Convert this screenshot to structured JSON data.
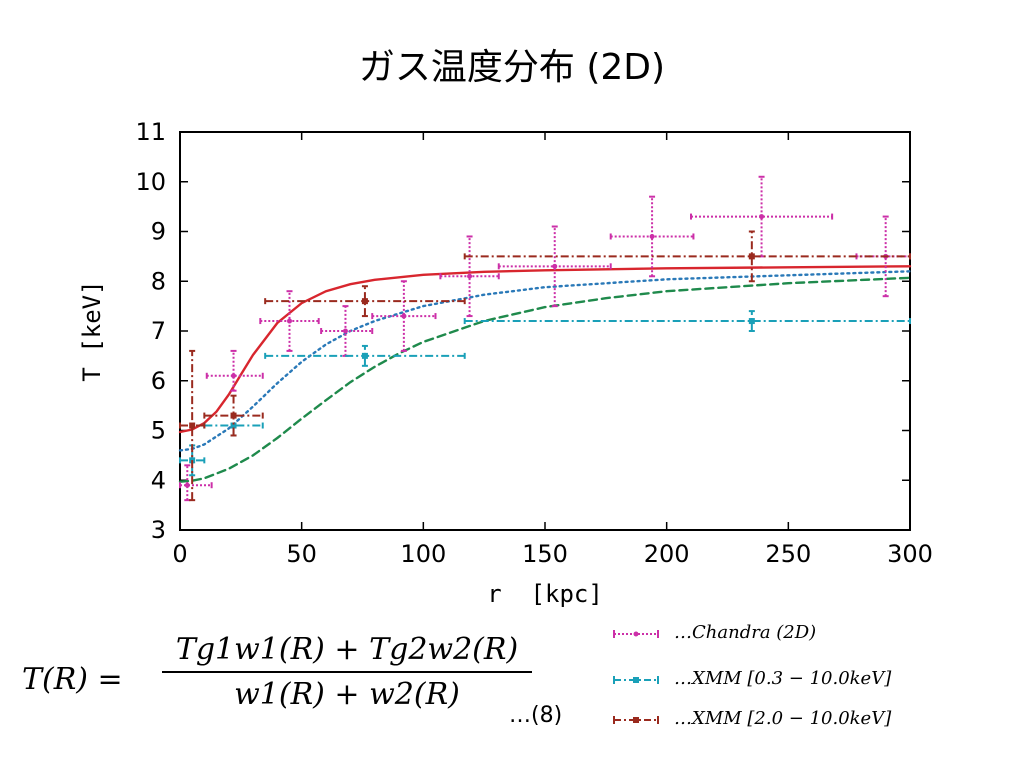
{
  "title": "ガス温度分布 (2D)",
  "formula": {
    "lhs": "T(R) =",
    "numerator": "Tg1w1(R) + Tg2w2(R)",
    "denominator": "w1(R) + w2(R)",
    "equation_number": "…(8)"
  },
  "legend": [
    {
      "label": "…Chandra (2D)",
      "color": "#cc2fa8"
    },
    {
      "label": "…XMM [0.3 − 10.0keV]",
      "color": "#1aa0b8"
    },
    {
      "label": "…XMM [2.0 − 10.0keV]",
      "color": "#9a2a1e"
    }
  ],
  "chart_data": {
    "type": "scatter",
    "xlabel": "r  [kpc]",
    "ylabel": "T [keV]",
    "xlim": [
      0,
      300
    ],
    "ylim": [
      3,
      11
    ],
    "xticks": [
      0,
      50,
      100,
      150,
      200,
      250,
      300
    ],
    "yticks": [
      3,
      4,
      5,
      6,
      7,
      8,
      9,
      10,
      11
    ],
    "grid": false,
    "series": [
      {
        "name": "Chandra (2D)",
        "color": "#cc2fa8",
        "style": "errorbar-dotted",
        "points": [
          {
            "x": 3,
            "y": 3.9,
            "xerr": [
              3,
              10
            ],
            "yerr": [
              0.3,
              0.4
            ]
          },
          {
            "x": 22,
            "y": 6.1,
            "xerr": [
              11,
              12
            ],
            "yerr": [
              0.3,
              0.5
            ]
          },
          {
            "x": 45,
            "y": 7.2,
            "xerr": [
              12,
              12
            ],
            "yerr": [
              0.6,
              0.6
            ]
          },
          {
            "x": 68,
            "y": 7.0,
            "xerr": [
              10,
              11
            ],
            "yerr": [
              0.5,
              0.5
            ]
          },
          {
            "x": 92,
            "y": 7.3,
            "xerr": [
              13,
              13
            ],
            "yerr": [
              0.7,
              0.7
            ]
          },
          {
            "x": 119,
            "y": 8.1,
            "xerr": [
              12,
              12
            ],
            "yerr": [
              0.8,
              0.8
            ]
          },
          {
            "x": 154,
            "y": 8.3,
            "xerr": [
              23,
              23
            ],
            "yerr": [
              0.8,
              0.8
            ]
          },
          {
            "x": 194,
            "y": 8.9,
            "xerr": [
              17,
              17
            ],
            "yerr": [
              0.8,
              0.8
            ]
          },
          {
            "x": 239,
            "y": 9.3,
            "xerr": [
              29,
              29
            ],
            "yerr": [
              0.8,
              0.8
            ]
          },
          {
            "x": 290,
            "y": 8.5,
            "xerr": [
              12,
              10
            ],
            "yerr": [
              0.8,
              0.8
            ]
          }
        ]
      },
      {
        "name": "XMM [0.3 - 10.0keV]",
        "color": "#1aa0b8",
        "style": "errorbar-dashdot",
        "points": [
          {
            "x": 5,
            "y": 4.4,
            "xerr": [
              5,
              5
            ],
            "yerr": [
              0.3,
              0.3
            ]
          },
          {
            "x": 22,
            "y": 5.1,
            "xerr": [
              12,
              12
            ],
            "yerr": [
              0.2,
              0.2
            ]
          },
          {
            "x": 76,
            "y": 6.5,
            "xerr": [
              41,
              41
            ],
            "yerr": [
              0.2,
              0.2
            ]
          },
          {
            "x": 235,
            "y": 7.2,
            "xerr": [
              118,
              65
            ],
            "yerr": [
              0.2,
              0.2
            ]
          }
        ]
      },
      {
        "name": "XMM [2.0 - 10.0keV]",
        "color": "#9a2a1e",
        "style": "errorbar-dashdot",
        "points": [
          {
            "x": 5,
            "y": 5.1,
            "xerr": [
              5,
              5
            ],
            "yerr": [
              1.5,
              1.5
            ]
          },
          {
            "x": 22,
            "y": 5.3,
            "xerr": [
              12,
              12
            ],
            "yerr": [
              0.4,
              0.4
            ]
          },
          {
            "x": 76,
            "y": 7.6,
            "xerr": [
              41,
              41
            ],
            "yerr": [
              0.3,
              0.3
            ]
          },
          {
            "x": 235,
            "y": 8.5,
            "xerr": [
              118,
              65
            ],
            "yerr": [
              0.5,
              0.5
            ]
          }
        ]
      }
    ],
    "curves": [
      {
        "color": "#d8262e",
        "style": "solid",
        "x": [
          0,
          5,
          10,
          15,
          20,
          25,
          30,
          40,
          50,
          60,
          70,
          80,
          100,
          125,
          150,
          200,
          250,
          300
        ],
        "y": [
          4.97,
          5.02,
          5.15,
          5.38,
          5.72,
          6.12,
          6.52,
          7.16,
          7.56,
          7.8,
          7.94,
          8.03,
          8.13,
          8.19,
          8.22,
          8.26,
          8.28,
          8.3
        ]
      },
      {
        "color": "#2a79b8",
        "style": "dotted",
        "x": [
          0,
          5,
          10,
          20,
          30,
          40,
          50,
          60,
          70,
          80,
          100,
          125,
          150,
          200,
          250,
          300
        ],
        "y": [
          4.6,
          4.63,
          4.72,
          5.04,
          5.48,
          5.95,
          6.38,
          6.73,
          7.0,
          7.2,
          7.5,
          7.73,
          7.88,
          8.04,
          8.12,
          8.2
        ]
      },
      {
        "color": "#1f8a4c",
        "style": "dashed",
        "x": [
          0,
          5,
          10,
          20,
          30,
          40,
          50,
          60,
          70,
          80,
          90,
          100,
          125,
          150,
          175,
          200,
          250,
          300
        ],
        "y": [
          3.97,
          3.99,
          4.04,
          4.23,
          4.5,
          4.85,
          5.24,
          5.61,
          5.97,
          6.28,
          6.55,
          6.78,
          7.2,
          7.48,
          7.66,
          7.8,
          7.96,
          8.07
        ]
      }
    ]
  }
}
